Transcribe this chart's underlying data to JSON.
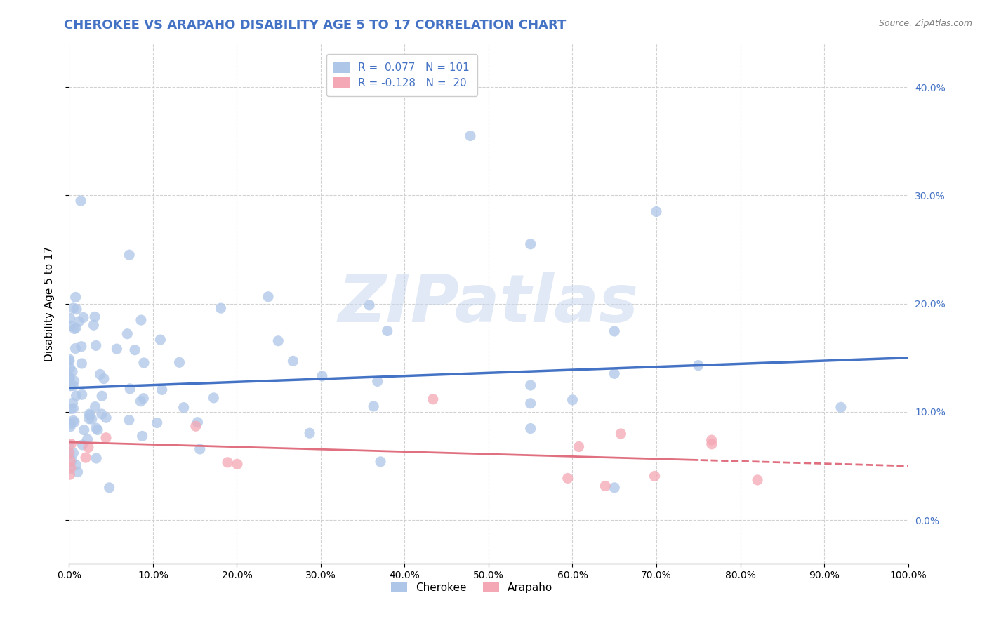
{
  "title": "CHEROKEE VS ARAPAHO DISABILITY AGE 5 TO 17 CORRELATION CHART",
  "source": "Source: ZipAtlas.com",
  "ylabel": "Disability Age 5 to 17",
  "xlim": [
    0.0,
    1.0
  ],
  "ylim": [
    -0.04,
    0.44
  ],
  "xticks": [
    0.0,
    0.1,
    0.2,
    0.3,
    0.4,
    0.5,
    0.6,
    0.7,
    0.8,
    0.9,
    1.0
  ],
  "yticks": [
    0.0,
    0.1,
    0.2,
    0.3,
    0.4
  ],
  "ytick_labels": [
    "0.0%",
    "10.0%",
    "20.0%",
    "30.0%",
    "40.0%"
  ],
  "xtick_labels": [
    "0.0%",
    "10.0%",
    "20.0%",
    "30.0%",
    "40.0%",
    "50.0%",
    "60.0%",
    "70.0%",
    "80.0%",
    "90.0%",
    "100.0%"
  ],
  "cherokee_color": "#aec6e8",
  "arapaho_color": "#f4a7b4",
  "cherokee_line_color": "#4472c4",
  "arapaho_line_color": "#e07080",
  "title_color": "#4472c4",
  "legend_color": "#4472c4",
  "R_cherokee": 0.077,
  "N_cherokee": 101,
  "R_arapaho": -0.128,
  "N_arapaho": 20,
  "cherokee_intercept": 0.122,
  "cherokee_slope": 0.028,
  "arapaho_intercept": 0.072,
  "arapaho_slope": -0.022,
  "watermark_text": "ZIPatlas",
  "background_color": "#ffffff",
  "grid_color": "#cccccc",
  "title_fontsize": 13,
  "axis_label_fontsize": 11,
  "tick_fontsize": 10,
  "legend_fontsize": 11,
  "source_fontsize": 9
}
